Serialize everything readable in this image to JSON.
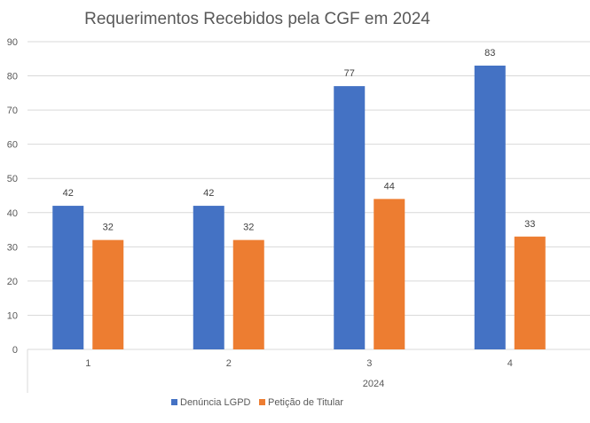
{
  "chart_data": {
    "type": "bar",
    "title": "Requerimentos Recebidos pela CGF em 2024",
    "categories": [
      "1",
      "2",
      "3",
      "4"
    ],
    "group_label": "2024",
    "series": [
      {
        "name": "Denúncia LGPD",
        "color": "#4472C4",
        "values": [
          42,
          42,
          77,
          83
        ]
      },
      {
        "name": "Petição de Titular",
        "color": "#ED7D31",
        "values": [
          32,
          32,
          44,
          33
        ]
      }
    ],
    "y_ticks": [
      "0",
      "10",
      "20",
      "30",
      "40",
      "50",
      "60",
      "70",
      "80",
      "90"
    ],
    "ylim": [
      0,
      90
    ],
    "grid": true,
    "legend_position": "bottom",
    "xlabel": "",
    "ylabel": ""
  }
}
